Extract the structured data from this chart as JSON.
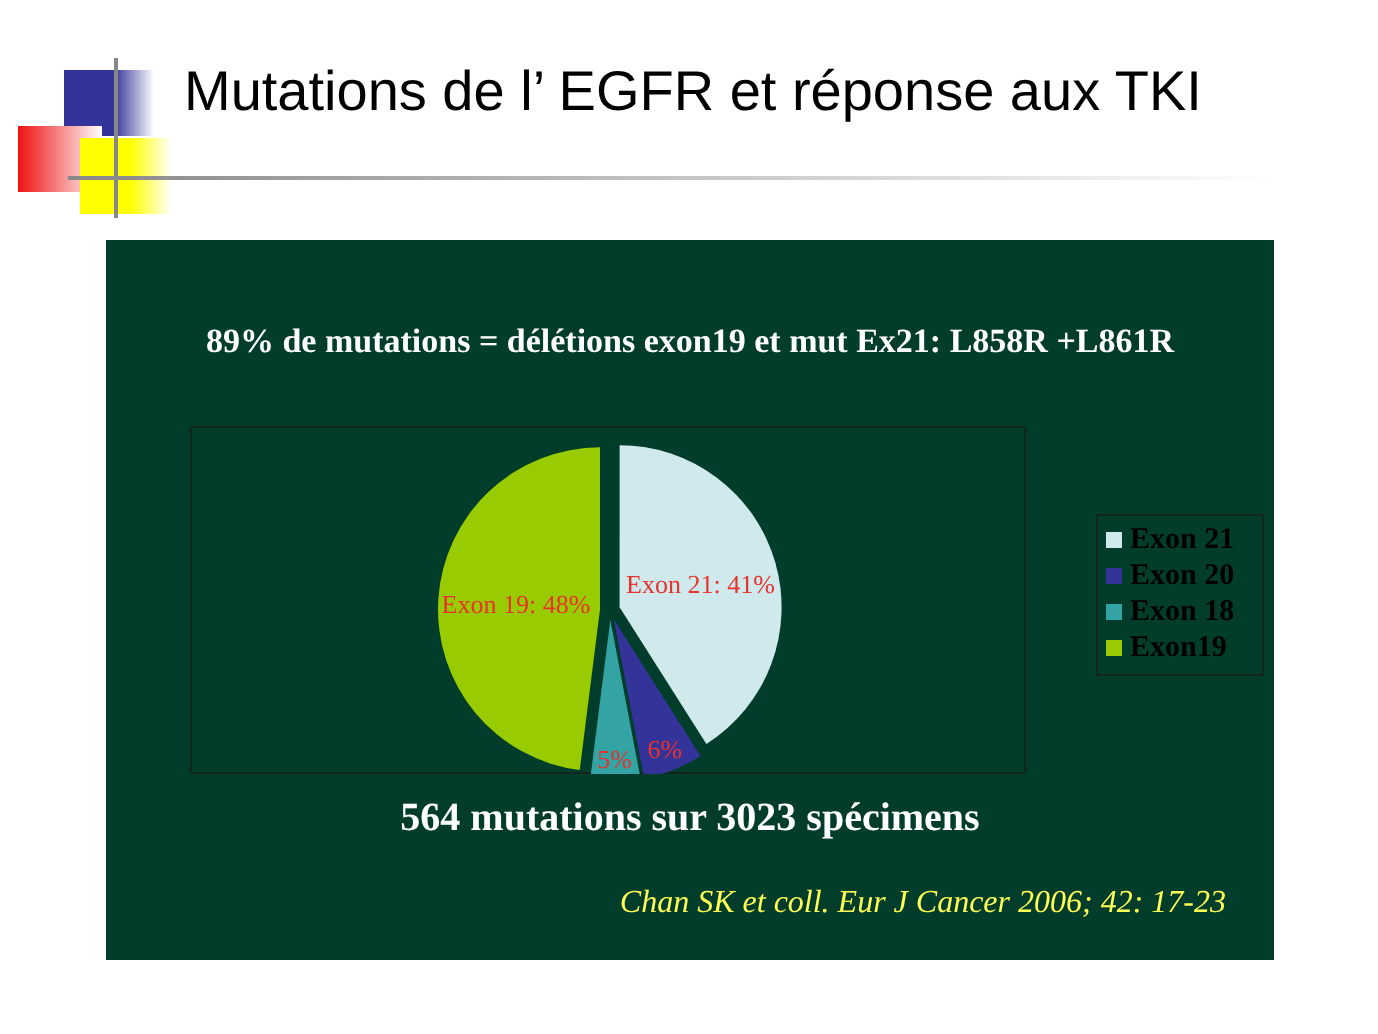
{
  "chart_data": {
    "type": "pie",
    "title": "Mutations de l’ EGFR et réponse aux TKI",
    "subtitle": "89% de mutations = délétions exon19 et mut Ex21: L858R +L861R",
    "categories": [
      "Exon 21",
      "Exon 20",
      "Exon 18",
      "Exon19"
    ],
    "values": [
      41,
      6,
      5,
      48
    ],
    "colors": [
      "#cfe9ec",
      "#333399",
      "#33a3a3",
      "#99cc00"
    ],
    "value_labels": [
      "Exon 21: 41%",
      "6%",
      "5%",
      "Exon 19: 48%"
    ],
    "legend": "right",
    "annotations": [
      "564 mutations sur 3023 spécimens",
      "Chan SK et coll. Eur J Cancer 2006; 42: 17-23"
    ]
  }
}
